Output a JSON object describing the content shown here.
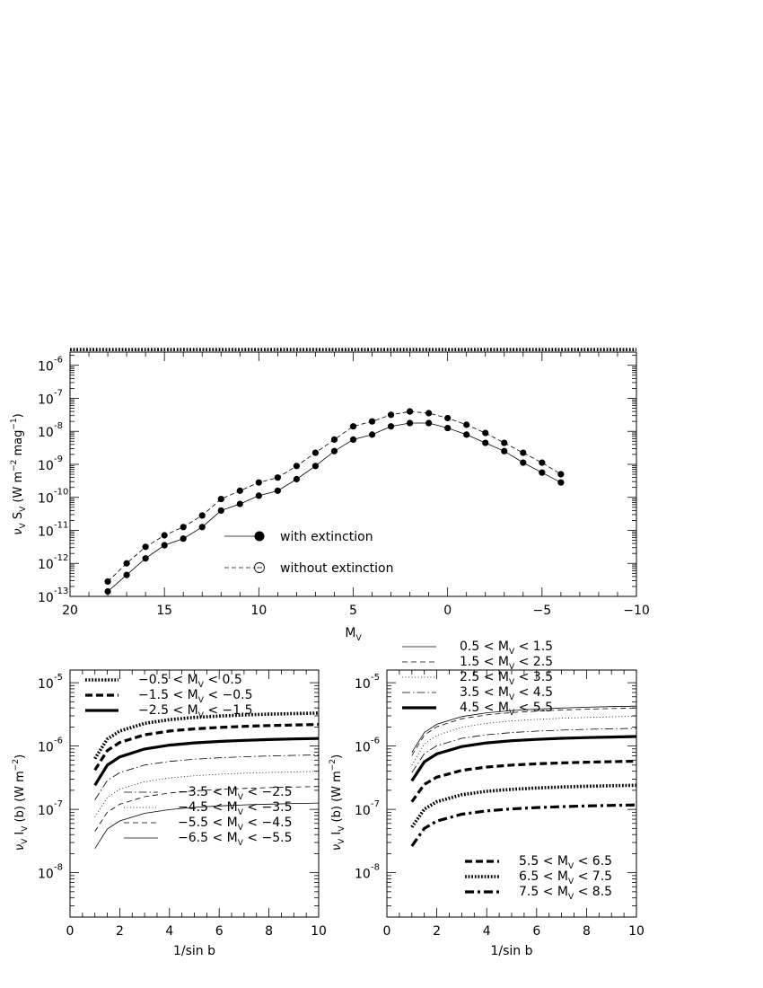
{
  "chart_data": [
    {
      "type": "line",
      "xlabel": "M",
      "xlabel_sub": "V",
      "ylabel": "ν",
      "ylabel_sub1": "V",
      "ylabel_mid": " S",
      "ylabel_sub2": "V",
      "ylabel_unit": " (W m",
      "ylabel_sup1": "−2",
      "ylabel_unit2": " mag",
      "ylabel_sup2": "−1",
      "ylabel_end": ")",
      "xlim": [
        20,
        -10
      ],
      "ylim_exp": [
        -13,
        -5.6
      ],
      "yscale": "log",
      "x_ticks": [
        "20",
        "15",
        "10",
        "5",
        "0",
        "−5",
        "−10"
      ],
      "y_ticks": [
        "-6",
        "-7",
        "-8",
        "-9",
        "-10",
        "-11",
        "-12",
        "-13"
      ],
      "legend_position": "bottom-center",
      "reference_line_y": 3e-06,
      "x": [
        18,
        17,
        16,
        15,
        14,
        13,
        12,
        11,
        10,
        9,
        8,
        7,
        6,
        5,
        4,
        3,
        2,
        1,
        0,
        -1,
        -2,
        -3,
        -4,
        -5,
        -6
      ],
      "series": [
        {
          "name": "with extinction",
          "style": "solid",
          "marker": "filled",
          "log_values": [
            -12.85,
            -12.35,
            -11.85,
            -11.45,
            -11.25,
            -10.9,
            -10.4,
            -10.2,
            -9.95,
            -9.8,
            -9.45,
            -9.05,
            -8.6,
            -8.25,
            -8.1,
            -7.85,
            -7.75,
            -7.75,
            -7.9,
            -8.1,
            -8.35,
            -8.6,
            -8.95,
            -9.25,
            -9.55
          ]
        },
        {
          "name": "without extinction",
          "style": "dashed",
          "marker": "open",
          "log_values": [
            -12.55,
            -12.0,
            -11.5,
            -11.15,
            -10.9,
            -10.55,
            -10.05,
            -9.8,
            -9.55,
            -9.4,
            -9.05,
            -8.65,
            -8.25,
            -7.85,
            -7.7,
            -7.5,
            -7.4,
            -7.45,
            -7.6,
            -7.8,
            -8.05,
            -8.35,
            -8.65,
            -8.95,
            -9.3
          ]
        }
      ]
    },
    {
      "type": "line",
      "xlabel": "1/sin b",
      "ylabel": "ν",
      "ylabel_sub1": "V",
      "ylabel_mid": " I",
      "ylabel_sub2": "V",
      "ylabel_unit": " (b) (W m",
      "ylabel_sup1": "−2",
      "ylabel_end": ")",
      "xlim": [
        0,
        10
      ],
      "ylim_exp": [
        -8.7,
        -4.8
      ],
      "yscale": "log",
      "x_ticks": [
        "0",
        "2",
        "4",
        "6",
        "8",
        "10"
      ],
      "y_ticks": [
        "-5",
        "-6",
        "-7",
        "-8"
      ],
      "x_values": [
        1,
        1.5,
        2,
        3,
        4,
        5,
        6,
        7,
        8,
        9,
        10
      ],
      "legend_top": [
        {
          "text": "−0.5 < M",
          "sub": "V",
          "rest": " <  0.5",
          "style": "dotted-thick"
        },
        {
          "text": "−1.5 < M",
          "sub": "V",
          "rest": " < −0.5",
          "style": "dashed-thick"
        },
        {
          "text": "−2.5 < M",
          "sub": "V",
          "rest": " < −1.5",
          "style": "solid-thick"
        }
      ],
      "legend_bottom": [
        {
          "text": "−3.5 < M",
          "sub": "V",
          "rest": " < −2.5",
          "style": "dashdot-thin"
        },
        {
          "text": "−4.5 < M",
          "sub": "V",
          "rest": " < −3.5",
          "style": "dotted-thin"
        },
        {
          "text": "−5.5 < M",
          "sub": "V",
          "rest": " < −4.5",
          "style": "dashed-thin"
        },
        {
          "text": "−6.5 < M",
          "sub": "V",
          "rest": " < −5.5",
          "style": "solid-thin"
        }
      ],
      "series": [
        {
          "name": "−0.5 < MV <  0.5",
          "style": "dotted-thick",
          "start": -6.2,
          "end": -5.48
        },
        {
          "name": "−1.5 < MV < −0.5",
          "style": "dashed-thick",
          "start": -6.38,
          "end": -5.66
        },
        {
          "name": "−2.5 < MV < −1.5",
          "style": "solid-thick",
          "start": -6.62,
          "end": -5.88
        },
        {
          "name": "−3.5 < MV < −2.5",
          "style": "dashdot-thin",
          "start": -6.85,
          "end": -6.14
        },
        {
          "name": "−4.5 < MV < −3.5",
          "style": "dotted-thin",
          "start": -7.12,
          "end": -6.4
        },
        {
          "name": "−5.5 < MV < −4.5",
          "style": "dashed-thin",
          "start": -7.35,
          "end": -6.64
        },
        {
          "name": "−6.5 < MV < −5.5",
          "style": "solid-thin",
          "start": -7.62,
          "end": -6.9
        }
      ]
    },
    {
      "type": "line",
      "xlabel": "1/sin b",
      "ylabel": "ν",
      "ylabel_sub1": "V",
      "ylabel_mid": " I",
      "ylabel_sub2": "V",
      "ylabel_unit": " (b) (W m",
      "ylabel_sup1": "−2",
      "ylabel_end": ")",
      "xlim": [
        0,
        10
      ],
      "ylim_exp": [
        -8.7,
        -4.8
      ],
      "yscale": "log",
      "x_ticks": [
        "0",
        "2",
        "4",
        "6",
        "8",
        "10"
      ],
      "y_ticks": [
        "-5",
        "-6",
        "-7",
        "-8"
      ],
      "x_values": [
        1,
        1.5,
        2,
        3,
        4,
        5,
        6,
        7,
        8,
        9,
        10
      ],
      "legend_top": [
        {
          "text": "0.5 < M",
          "sub": "V",
          "rest": " < 1.5",
          "style": "solid-thin"
        },
        {
          "text": "1.5 < M",
          "sub": "V",
          "rest": " < 2.5",
          "style": "dashed-thin"
        },
        {
          "text": "2.5 < M",
          "sub": "V",
          "rest": " < 3.5",
          "style": "dotted-thin"
        },
        {
          "text": "3.5 < M",
          "sub": "V",
          "rest": " < 4.5",
          "style": "dashdot-thin"
        },
        {
          "text": "4.5 < M",
          "sub": "V",
          "rest": " < 5.5",
          "style": "solid-thick"
        }
      ],
      "legend_bottom": [
        {
          "text": "5.5 < M",
          "sub": "V",
          "rest": " < 6.5",
          "style": "dashed-thick"
        },
        {
          "text": "6.5 < M",
          "sub": "V",
          "rest": " < 7.5",
          "style": "dotted-thick"
        },
        {
          "text": "7.5 < M",
          "sub": "V",
          "rest": " < 8.5",
          "style": "dashdot-thick"
        }
      ],
      "series": [
        {
          "name": "0.5 < MV < 1.5",
          "style": "solid-thin",
          "start": -6.1,
          "end": -5.37
        },
        {
          "name": "1.5 < MV < 2.5",
          "style": "dashed-thin",
          "start": -6.15,
          "end": -5.4
        },
        {
          "name": "2.5 < MV < 3.5",
          "style": "dotted-thin",
          "start": -6.3,
          "end": -5.53
        },
        {
          "name": "3.5 < MV < 4.5",
          "style": "dashdot-thin",
          "start": -6.42,
          "end": -5.72
        },
        {
          "name": "4.5 < MV < 5.5",
          "style": "solid-thick",
          "start": -6.55,
          "end": -5.85
        },
        {
          "name": "5.5 < MV < 6.5",
          "style": "dashed-thick",
          "start": -6.88,
          "end": -6.24
        },
        {
          "name": "6.5 < MV < 7.5",
          "style": "dotted-thick",
          "start": -7.28,
          "end": -6.62
        },
        {
          "name": "7.5 < MV < 8.5",
          "style": "dashdot-thick",
          "start": -7.58,
          "end": -6.93
        }
      ]
    }
  ]
}
